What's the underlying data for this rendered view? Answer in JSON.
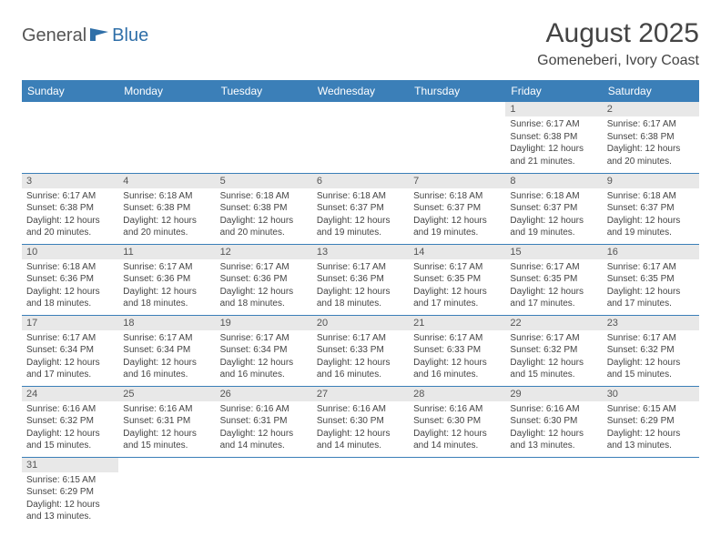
{
  "logo": {
    "part1": "General",
    "part2": "Blue"
  },
  "title": "August 2025",
  "location": "Gomeneberi, Ivory Coast",
  "colors": {
    "header_bg": "#3b7fb8",
    "header_fg": "#ffffff",
    "daynum_bg": "#e8e8e8",
    "row_border": "#3b7fb8"
  },
  "weekdays": [
    "Sunday",
    "Monday",
    "Tuesday",
    "Wednesday",
    "Thursday",
    "Friday",
    "Saturday"
  ],
  "weeks": [
    [
      null,
      null,
      null,
      null,
      null,
      {
        "n": "1",
        "sr": "Sunrise: 6:17 AM",
        "ss": "Sunset: 6:38 PM",
        "dl1": "Daylight: 12 hours",
        "dl2": "and 21 minutes."
      },
      {
        "n": "2",
        "sr": "Sunrise: 6:17 AM",
        "ss": "Sunset: 6:38 PM",
        "dl1": "Daylight: 12 hours",
        "dl2": "and 20 minutes."
      }
    ],
    [
      {
        "n": "3",
        "sr": "Sunrise: 6:17 AM",
        "ss": "Sunset: 6:38 PM",
        "dl1": "Daylight: 12 hours",
        "dl2": "and 20 minutes."
      },
      {
        "n": "4",
        "sr": "Sunrise: 6:18 AM",
        "ss": "Sunset: 6:38 PM",
        "dl1": "Daylight: 12 hours",
        "dl2": "and 20 minutes."
      },
      {
        "n": "5",
        "sr": "Sunrise: 6:18 AM",
        "ss": "Sunset: 6:38 PM",
        "dl1": "Daylight: 12 hours",
        "dl2": "and 20 minutes."
      },
      {
        "n": "6",
        "sr": "Sunrise: 6:18 AM",
        "ss": "Sunset: 6:37 PM",
        "dl1": "Daylight: 12 hours",
        "dl2": "and 19 minutes."
      },
      {
        "n": "7",
        "sr": "Sunrise: 6:18 AM",
        "ss": "Sunset: 6:37 PM",
        "dl1": "Daylight: 12 hours",
        "dl2": "and 19 minutes."
      },
      {
        "n": "8",
        "sr": "Sunrise: 6:18 AM",
        "ss": "Sunset: 6:37 PM",
        "dl1": "Daylight: 12 hours",
        "dl2": "and 19 minutes."
      },
      {
        "n": "9",
        "sr": "Sunrise: 6:18 AM",
        "ss": "Sunset: 6:37 PM",
        "dl1": "Daylight: 12 hours",
        "dl2": "and 19 minutes."
      }
    ],
    [
      {
        "n": "10",
        "sr": "Sunrise: 6:18 AM",
        "ss": "Sunset: 6:36 PM",
        "dl1": "Daylight: 12 hours",
        "dl2": "and 18 minutes."
      },
      {
        "n": "11",
        "sr": "Sunrise: 6:17 AM",
        "ss": "Sunset: 6:36 PM",
        "dl1": "Daylight: 12 hours",
        "dl2": "and 18 minutes."
      },
      {
        "n": "12",
        "sr": "Sunrise: 6:17 AM",
        "ss": "Sunset: 6:36 PM",
        "dl1": "Daylight: 12 hours",
        "dl2": "and 18 minutes."
      },
      {
        "n": "13",
        "sr": "Sunrise: 6:17 AM",
        "ss": "Sunset: 6:36 PM",
        "dl1": "Daylight: 12 hours",
        "dl2": "and 18 minutes."
      },
      {
        "n": "14",
        "sr": "Sunrise: 6:17 AM",
        "ss": "Sunset: 6:35 PM",
        "dl1": "Daylight: 12 hours",
        "dl2": "and 17 minutes."
      },
      {
        "n": "15",
        "sr": "Sunrise: 6:17 AM",
        "ss": "Sunset: 6:35 PM",
        "dl1": "Daylight: 12 hours",
        "dl2": "and 17 minutes."
      },
      {
        "n": "16",
        "sr": "Sunrise: 6:17 AM",
        "ss": "Sunset: 6:35 PM",
        "dl1": "Daylight: 12 hours",
        "dl2": "and 17 minutes."
      }
    ],
    [
      {
        "n": "17",
        "sr": "Sunrise: 6:17 AM",
        "ss": "Sunset: 6:34 PM",
        "dl1": "Daylight: 12 hours",
        "dl2": "and 17 minutes."
      },
      {
        "n": "18",
        "sr": "Sunrise: 6:17 AM",
        "ss": "Sunset: 6:34 PM",
        "dl1": "Daylight: 12 hours",
        "dl2": "and 16 minutes."
      },
      {
        "n": "19",
        "sr": "Sunrise: 6:17 AM",
        "ss": "Sunset: 6:34 PM",
        "dl1": "Daylight: 12 hours",
        "dl2": "and 16 minutes."
      },
      {
        "n": "20",
        "sr": "Sunrise: 6:17 AM",
        "ss": "Sunset: 6:33 PM",
        "dl1": "Daylight: 12 hours",
        "dl2": "and 16 minutes."
      },
      {
        "n": "21",
        "sr": "Sunrise: 6:17 AM",
        "ss": "Sunset: 6:33 PM",
        "dl1": "Daylight: 12 hours",
        "dl2": "and 16 minutes."
      },
      {
        "n": "22",
        "sr": "Sunrise: 6:17 AM",
        "ss": "Sunset: 6:32 PM",
        "dl1": "Daylight: 12 hours",
        "dl2": "and 15 minutes."
      },
      {
        "n": "23",
        "sr": "Sunrise: 6:17 AM",
        "ss": "Sunset: 6:32 PM",
        "dl1": "Daylight: 12 hours",
        "dl2": "and 15 minutes."
      }
    ],
    [
      {
        "n": "24",
        "sr": "Sunrise: 6:16 AM",
        "ss": "Sunset: 6:32 PM",
        "dl1": "Daylight: 12 hours",
        "dl2": "and 15 minutes."
      },
      {
        "n": "25",
        "sr": "Sunrise: 6:16 AM",
        "ss": "Sunset: 6:31 PM",
        "dl1": "Daylight: 12 hours",
        "dl2": "and 15 minutes."
      },
      {
        "n": "26",
        "sr": "Sunrise: 6:16 AM",
        "ss": "Sunset: 6:31 PM",
        "dl1": "Daylight: 12 hours",
        "dl2": "and 14 minutes."
      },
      {
        "n": "27",
        "sr": "Sunrise: 6:16 AM",
        "ss": "Sunset: 6:30 PM",
        "dl1": "Daylight: 12 hours",
        "dl2": "and 14 minutes."
      },
      {
        "n": "28",
        "sr": "Sunrise: 6:16 AM",
        "ss": "Sunset: 6:30 PM",
        "dl1": "Daylight: 12 hours",
        "dl2": "and 14 minutes."
      },
      {
        "n": "29",
        "sr": "Sunrise: 6:16 AM",
        "ss": "Sunset: 6:30 PM",
        "dl1": "Daylight: 12 hours",
        "dl2": "and 13 minutes."
      },
      {
        "n": "30",
        "sr": "Sunrise: 6:15 AM",
        "ss": "Sunset: 6:29 PM",
        "dl1": "Daylight: 12 hours",
        "dl2": "and 13 minutes."
      }
    ],
    [
      {
        "n": "31",
        "sr": "Sunrise: 6:15 AM",
        "ss": "Sunset: 6:29 PM",
        "dl1": "Daylight: 12 hours",
        "dl2": "and 13 minutes."
      },
      null,
      null,
      null,
      null,
      null,
      null
    ]
  ]
}
